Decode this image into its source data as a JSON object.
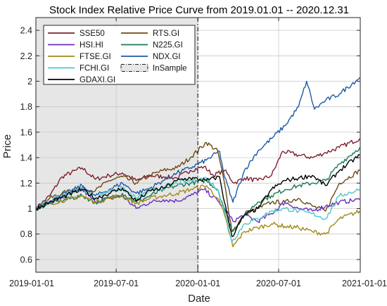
{
  "chart_data": {
    "type": "line",
    "title": "Stock Index Relative Price Curve from 2019.01.01 -- 2020.12.31",
    "xlabel": "Date",
    "ylabel": "Price",
    "xlim": [
      "2019-01-01",
      "2021-01-01"
    ],
    "ylim": [
      0.5,
      2.5
    ],
    "xticks": [
      "2019-01-01",
      "2019-07-01",
      "2020-01-01",
      "2020-07-01",
      "2021-01-01"
    ],
    "yticks": [
      0.6,
      0.8,
      1,
      1.2,
      1.4,
      1.6,
      1.8,
      2,
      2.2,
      2.4
    ],
    "ytick_labels": [
      "0.6",
      "0.8",
      "1",
      "1.2",
      "1.4",
      "1.6",
      "1.8",
      "2",
      "2.2",
      "2.4"
    ],
    "grid": true,
    "legend_position": "top-left",
    "in_sample": {
      "label": "InSample",
      "start": "2019-01-01",
      "end": "2020-01-01",
      "fill": "#e6e6e6"
    },
    "series": [
      {
        "name": "SSE50",
        "color": "#7f1f2f",
        "x": [
          "2019-01-01",
          "2019-02-01",
          "2019-03-01",
          "2019-04-15",
          "2019-05-15",
          "2019-06-15",
          "2019-07-15",
          "2019-08-15",
          "2019-09-15",
          "2019-10-15",
          "2019-11-15",
          "2019-12-15",
          "2020-01-15",
          "2020-02-05",
          "2020-03-01",
          "2020-03-23",
          "2020-04-15",
          "2020-05-15",
          "2020-06-15",
          "2020-07-10",
          "2020-08-15",
          "2020-09-15",
          "2020-10-15",
          "2020-11-15",
          "2020-12-31"
        ],
        "values": [
          1.0,
          1.1,
          1.25,
          1.32,
          1.23,
          1.26,
          1.28,
          1.22,
          1.26,
          1.25,
          1.24,
          1.3,
          1.33,
          1.26,
          1.3,
          1.2,
          1.24,
          1.22,
          1.26,
          1.45,
          1.42,
          1.4,
          1.44,
          1.48,
          1.55
        ]
      },
      {
        "name": "RTS.GI",
        "color": "#6b4a12",
        "x": [
          "2019-01-01",
          "2019-02-01",
          "2019-03-01",
          "2019-04-15",
          "2019-05-15",
          "2019-06-15",
          "2019-07-15",
          "2019-08-15",
          "2019-09-15",
          "2019-10-15",
          "2019-11-15",
          "2019-12-15",
          "2020-01-20",
          "2020-02-15",
          "2020-03-01",
          "2020-03-18",
          "2020-04-15",
          "2020-05-15",
          "2020-06-15",
          "2020-07-15",
          "2020-08-15",
          "2020-09-15",
          "2020-10-15",
          "2020-11-15",
          "2020-12-31"
        ],
        "values": [
          1.0,
          1.08,
          1.12,
          1.16,
          1.14,
          1.22,
          1.25,
          1.2,
          1.26,
          1.3,
          1.32,
          1.4,
          1.52,
          1.45,
          1.2,
          0.82,
          0.95,
          1.0,
          1.05,
          1.05,
          1.08,
          1.02,
          0.98,
          1.2,
          1.3
        ]
      },
      {
        "name": "HSI.HI",
        "color": "#6a2dc4",
        "x": [
          "2019-01-01",
          "2019-02-01",
          "2019-04-15",
          "2019-05-15",
          "2019-06-15",
          "2019-07-15",
          "2019-08-15",
          "2019-09-15",
          "2019-10-15",
          "2019-11-15",
          "2019-12-15",
          "2020-01-15",
          "2020-02-15",
          "2020-03-01",
          "2020-03-20",
          "2020-04-15",
          "2020-05-15",
          "2020-06-15",
          "2020-07-15",
          "2020-08-15",
          "2020-09-15",
          "2020-10-15",
          "2020-11-15",
          "2020-12-31"
        ],
        "values": [
          1.0,
          1.05,
          1.15,
          1.05,
          1.08,
          1.1,
          1.0,
          1.05,
          1.07,
          1.06,
          1.1,
          1.15,
          1.06,
          1.0,
          0.9,
          0.95,
          0.9,
          0.96,
          1.05,
          1.0,
          0.98,
          1.02,
          1.05,
          1.07
        ]
      },
      {
        "name": "N225.GI",
        "color": "#1a7a55",
        "x": [
          "2019-01-01",
          "2019-02-01",
          "2019-04-15",
          "2019-05-15",
          "2019-06-15",
          "2019-07-15",
          "2019-08-15",
          "2019-09-15",
          "2019-10-15",
          "2019-11-15",
          "2019-12-15",
          "2020-01-20",
          "2020-02-15",
          "2020-03-01",
          "2020-03-19",
          "2020-04-15",
          "2020-05-15",
          "2020-06-15",
          "2020-07-15",
          "2020-08-15",
          "2020-09-15",
          "2020-10-15",
          "2020-11-15",
          "2020-12-31"
        ],
        "values": [
          1.0,
          1.04,
          1.1,
          1.05,
          1.08,
          1.12,
          1.05,
          1.1,
          1.15,
          1.18,
          1.2,
          1.22,
          1.15,
          1.0,
          0.82,
          0.95,
          1.05,
          1.1,
          1.15,
          1.18,
          1.2,
          1.22,
          1.35,
          1.48
        ]
      },
      {
        "name": "FTSE.GI",
        "color": "#a38a14",
        "x": [
          "2019-01-01",
          "2019-02-01",
          "2019-04-15",
          "2019-05-15",
          "2019-06-15",
          "2019-07-15",
          "2019-08-15",
          "2019-09-15",
          "2019-10-15",
          "2019-11-15",
          "2019-12-15",
          "2020-01-20",
          "2020-02-15",
          "2020-03-01",
          "2020-03-20",
          "2020-04-15",
          "2020-05-15",
          "2020-06-15",
          "2020-07-15",
          "2020-08-15",
          "2020-09-15",
          "2020-10-15",
          "2020-11-15",
          "2020-12-31"
        ],
        "values": [
          1.0,
          1.04,
          1.1,
          1.05,
          1.08,
          1.1,
          1.04,
          1.08,
          1.1,
          1.12,
          1.15,
          1.18,
          1.08,
          0.95,
          0.7,
          0.82,
          0.85,
          0.88,
          0.86,
          0.85,
          0.82,
          0.8,
          0.92,
          0.98
        ]
      },
      {
        "name": "NDX.GI",
        "color": "#1d5aa6",
        "x": [
          "2019-01-01",
          "2019-02-01",
          "2019-04-15",
          "2019-05-15",
          "2019-06-15",
          "2019-07-15",
          "2019-08-15",
          "2019-09-15",
          "2019-10-15",
          "2019-11-15",
          "2019-12-15",
          "2020-01-20",
          "2020-02-19",
          "2020-03-01",
          "2020-03-20",
          "2020-04-15",
          "2020-05-15",
          "2020-06-15",
          "2020-07-15",
          "2020-08-15",
          "2020-09-02",
          "2020-09-20",
          "2020-10-15",
          "2020-11-15",
          "2020-12-31"
        ],
        "values": [
          1.0,
          1.06,
          1.18,
          1.1,
          1.15,
          1.2,
          1.12,
          1.16,
          1.22,
          1.28,
          1.32,
          1.38,
          1.45,
          1.25,
          1.05,
          1.3,
          1.45,
          1.55,
          1.65,
          1.8,
          2.0,
          1.78,
          1.85,
          1.9,
          2.03
        ]
      },
      {
        "name": "FCHI.GI",
        "color": "#4cc7c7",
        "x": [
          "2019-01-01",
          "2019-02-01",
          "2019-04-15",
          "2019-05-15",
          "2019-06-15",
          "2019-07-15",
          "2019-08-15",
          "2019-09-15",
          "2019-10-15",
          "2019-11-15",
          "2019-12-15",
          "2020-01-20",
          "2020-02-15",
          "2020-03-01",
          "2020-03-18",
          "2020-04-15",
          "2020-05-15",
          "2020-06-15",
          "2020-07-15",
          "2020-08-15",
          "2020-09-15",
          "2020-10-15",
          "2020-11-15",
          "2020-12-31"
        ],
        "values": [
          1.0,
          1.06,
          1.16,
          1.08,
          1.14,
          1.16,
          1.08,
          1.14,
          1.16,
          1.2,
          1.22,
          1.24,
          1.15,
          0.98,
          0.74,
          0.88,
          0.92,
          0.98,
          1.0,
          0.98,
          0.96,
          0.92,
          1.1,
          1.15
        ]
      },
      {
        "name": "GDAXI.GI",
        "color": "#000000",
        "x": [
          "2019-01-01",
          "2019-02-01",
          "2019-04-15",
          "2019-05-15",
          "2019-06-15",
          "2019-07-15",
          "2019-08-15",
          "2019-09-15",
          "2019-10-15",
          "2019-11-15",
          "2019-12-15",
          "2020-01-20",
          "2020-02-19",
          "2020-03-01",
          "2020-03-18",
          "2020-04-15",
          "2020-05-15",
          "2020-06-15",
          "2020-07-15",
          "2020-08-15",
          "2020-09-15",
          "2020-10-15",
          "2020-11-15",
          "2020-12-31"
        ],
        "values": [
          1.0,
          1.05,
          1.15,
          1.08,
          1.12,
          1.16,
          1.06,
          1.14,
          1.16,
          1.22,
          1.24,
          1.22,
          1.25,
          1.05,
          0.78,
          0.95,
          1.0,
          1.15,
          1.22,
          1.24,
          1.26,
          1.18,
          1.3,
          1.42
        ]
      }
    ]
  }
}
